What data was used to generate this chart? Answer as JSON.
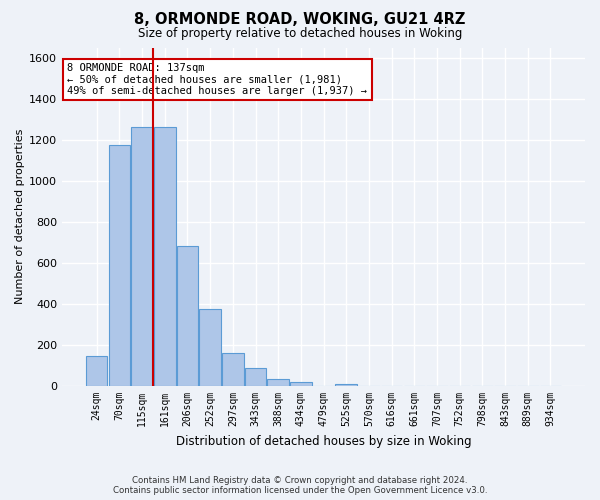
{
  "title": "8, ORMONDE ROAD, WOKING, GU21 4RZ",
  "subtitle": "Size of property relative to detached houses in Woking",
  "xlabel": "Distribution of detached houses by size in Woking",
  "ylabel": "Number of detached properties",
  "bin_labels": [
    "24sqm",
    "70sqm",
    "115sqm",
    "161sqm",
    "206sqm",
    "252sqm",
    "297sqm",
    "343sqm",
    "388sqm",
    "434sqm",
    "479sqm",
    "525sqm",
    "570sqm",
    "616sqm",
    "661sqm",
    "707sqm",
    "752sqm",
    "798sqm",
    "843sqm",
    "889sqm",
    "934sqm"
  ],
  "bar_values": [
    148,
    1175,
    1262,
    1262,
    685,
    375,
    163,
    88,
    35,
    22,
    0,
    12,
    0,
    0,
    0,
    0,
    0,
    0,
    0,
    0,
    0
  ],
  "bar_color": "#aec6e8",
  "bar_edge_color": "#5b9bd5",
  "background_color": "#eef2f8",
  "grid_color": "#ffffff",
  "vline_color": "#cc0000",
  "annotation_title": "8 ORMONDE ROAD: 137sqm",
  "annotation_line1": "← 50% of detached houses are smaller (1,981)",
  "annotation_line2": "49% of semi-detached houses are larger (1,937) →",
  "annotation_box_color": "#ffffff",
  "annotation_box_edge": "#cc0000",
  "footnote1": "Contains HM Land Registry data © Crown copyright and database right 2024.",
  "footnote2": "Contains public sector information licensed under the Open Government Licence v3.0.",
  "ylim": [
    0,
    1650
  ],
  "yticks": [
    0,
    200,
    400,
    600,
    800,
    1000,
    1200,
    1400,
    1600
  ]
}
